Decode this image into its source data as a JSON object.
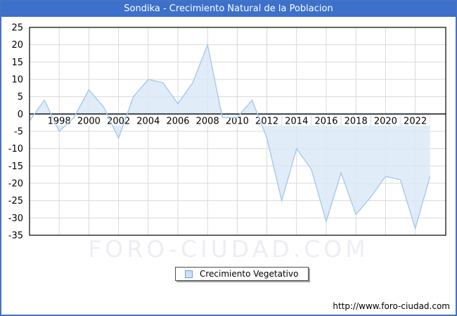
{
  "title": "Sondika - Crecimiento Natural de la Poblacion",
  "legend": {
    "label": "Crecimiento Vegetativo"
  },
  "watermark": "FORO-CIUDAD.COM",
  "footer": {
    "url": "http://www.foro-ciudad.com"
  },
  "colors": {
    "titlebar_bg": "#3c70cb",
    "frame_border": "#4472c4",
    "line": "#a6c9ea",
    "area_fill": "#d9e7f8",
    "gridline": "#d9d9d9",
    "axis": "#000000",
    "legend_swatch_fill": "#cfe2f4",
    "legend_swatch_border": "#6f9fd8",
    "watermark": "#ededf5"
  },
  "chart_data": {
    "type": "area",
    "title": "Sondika - Crecimiento Natural de la Poblacion",
    "x": [
      1996,
      1997,
      1998,
      1999,
      2000,
      2001,
      2002,
      2003,
      2004,
      2005,
      2006,
      2007,
      2008,
      2009,
      2010,
      2011,
      2012,
      2013,
      2014,
      2015,
      2016,
      2017,
      2018,
      2019,
      2020,
      2021,
      2022,
      2023
    ],
    "series": [
      {
        "name": "Crecimiento Vegetativo",
        "values": [
          -2,
          4,
          -5,
          -1,
          7,
          2,
          -7,
          5,
          10,
          9,
          3,
          9,
          20,
          -1,
          -1,
          4,
          -7,
          -25,
          -10,
          -16,
          -31,
          -17,
          -29,
          -24,
          -18,
          -19,
          -33,
          -18
        ]
      }
    ],
    "xticks": [
      1998,
      2000,
      2002,
      2004,
      2006,
      2008,
      2010,
      2012,
      2014,
      2016,
      2018,
      2020,
      2022
    ],
    "yticks": [
      25,
      20,
      15,
      10,
      5,
      0,
      -5,
      -10,
      -15,
      -20,
      -25,
      -30,
      -35
    ],
    "ylim": [
      -35,
      25
    ],
    "ytick_step": 5,
    "baseline": 0,
    "grid": true,
    "legend_position": "bottom-center",
    "xlabel": "",
    "ylabel": ""
  }
}
